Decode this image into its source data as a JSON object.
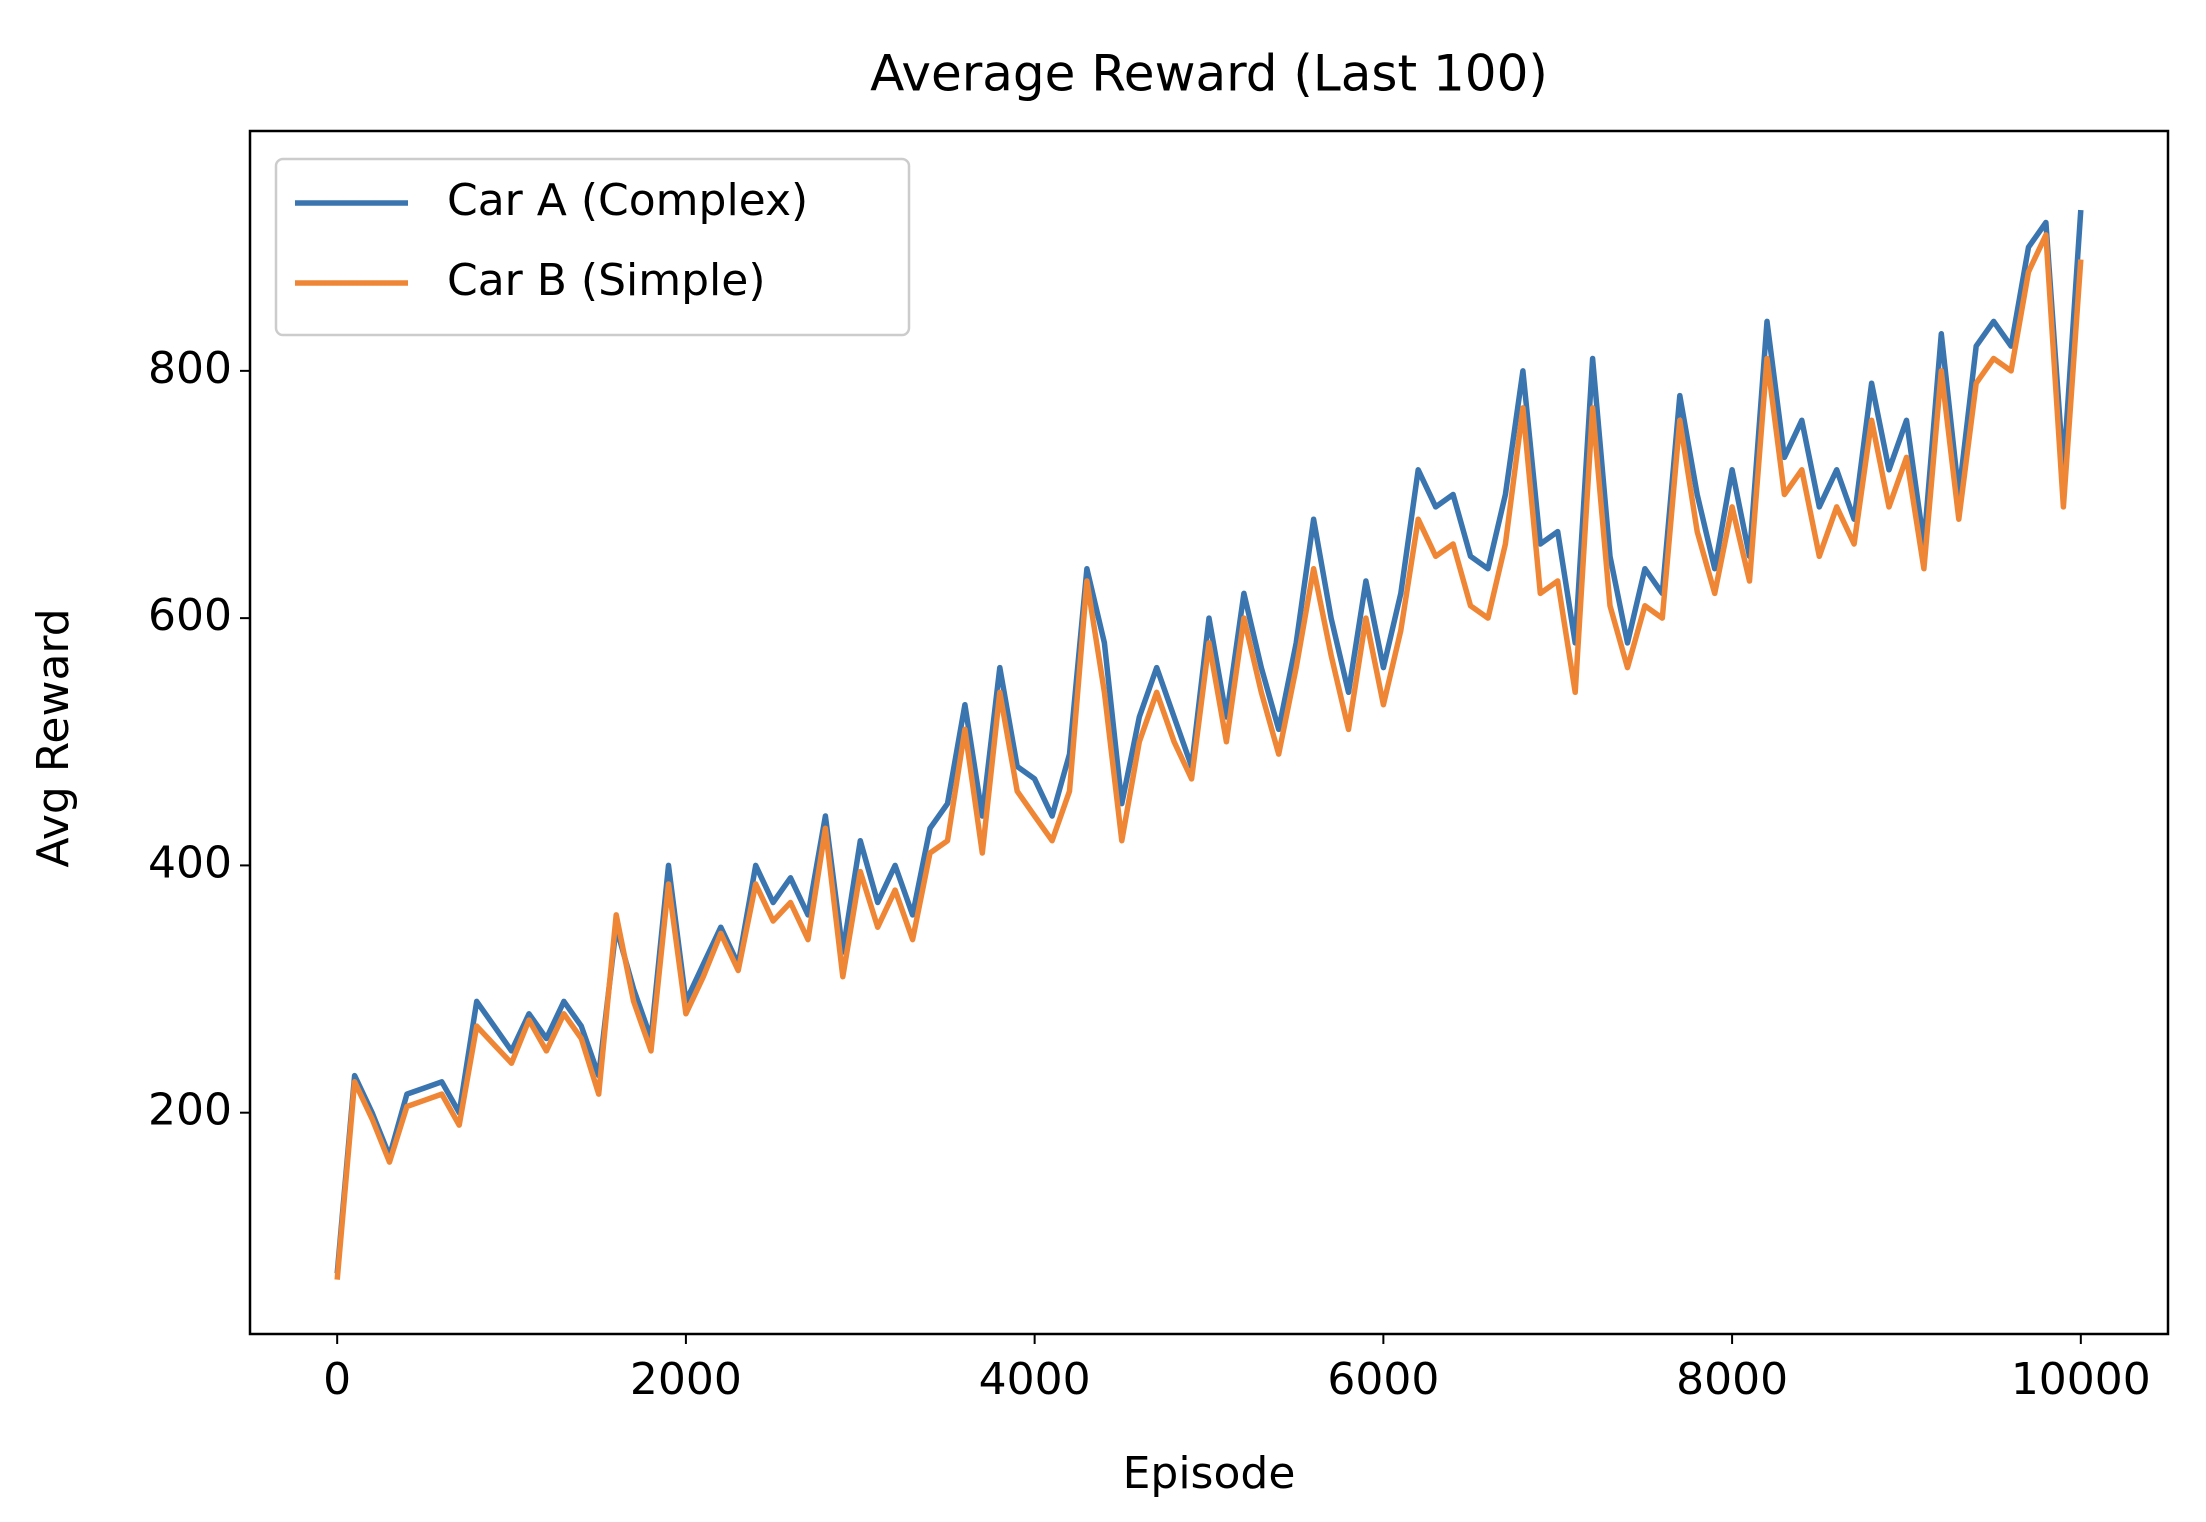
{
  "chart_data": {
    "type": "line",
    "title": "Average Reward (Last 100)",
    "xlabel": "Episode",
    "ylabel": "Avg Reward",
    "x": [
      0,
      100,
      200,
      300,
      400,
      500,
      600,
      700,
      800,
      900,
      1000,
      1100,
      1200,
      1300,
      1400,
      1500,
      1600,
      1700,
      1800,
      1900,
      2000,
      2100,
      2200,
      2300,
      2400,
      2500,
      2600,
      2700,
      2800,
      2900,
      3000,
      3100,
      3200,
      3300,
      3400,
      3500,
      3600,
      3700,
      3800,
      3900,
      4000,
      4100,
      4200,
      4300,
      4400,
      4500,
      4600,
      4700,
      4800,
      4900,
      5000,
      5100,
      5200,
      5300,
      5400,
      5500,
      5600,
      5700,
      5800,
      5900,
      6000,
      6100,
      6200,
      6300,
      6400,
      6500,
      6600,
      6700,
      6800,
      6900,
      7000,
      7100,
      7200,
      7300,
      7400,
      7500,
      7600,
      7700,
      7800,
      7900,
      8000,
      8100,
      8200,
      8300,
      8400,
      8500,
      8600,
      8700,
      8800,
      8900,
      9000,
      9100,
      9200,
      9300,
      9400,
      9500,
      9600,
      9700,
      9800,
      9900,
      10000
    ],
    "series": [
      {
        "name": "Car A (Complex)",
        "color": "#3b75af",
        "values": [
          70,
          230,
          200,
          165,
          215,
          220,
          225,
          200,
          290,
          270,
          250,
          280,
          260,
          290,
          270,
          230,
          350,
          300,
          260,
          400,
          290,
          320,
          350,
          320,
          400,
          370,
          390,
          360,
          440,
          330,
          420,
          370,
          400,
          360,
          430,
          450,
          530,
          440,
          560,
          480,
          470,
          440,
          490,
          640,
          580,
          450,
          520,
          560,
          520,
          480,
          600,
          520,
          620,
          560,
          510,
          580,
          680,
          600,
          540,
          630,
          560,
          620,
          720,
          690,
          700,
          650,
          640,
          700,
          800,
          660,
          670,
          580,
          810,
          650,
          580,
          640,
          620,
          780,
          700,
          640,
          720,
          650,
          840,
          730,
          760,
          690,
          720,
          680,
          790,
          720,
          760,
          660,
          830,
          700,
          820,
          840,
          820,
          900,
          920,
          720,
          930
        ]
      },
      {
        "name": "Car B (Simple)",
        "color": "#ef8636",
        "values": [
          65,
          225,
          195,
          160,
          205,
          210,
          215,
          190,
          270,
          255,
          240,
          275,
          250,
          280,
          260,
          215,
          360,
          290,
          250,
          385,
          280,
          310,
          345,
          315,
          385,
          355,
          370,
          340,
          430,
          310,
          395,
          350,
          380,
          340,
          410,
          420,
          510,
          410,
          540,
          460,
          440,
          420,
          460,
          630,
          540,
          420,
          500,
          540,
          500,
          470,
          580,
          500,
          600,
          540,
          490,
          560,
          640,
          570,
          510,
          600,
          530,
          590,
          680,
          650,
          660,
          610,
          600,
          660,
          770,
          620,
          630,
          540,
          770,
          610,
          560,
          610,
          600,
          760,
          670,
          620,
          690,
          630,
          810,
          700,
          720,
          650,
          690,
          660,
          760,
          690,
          730,
          640,
          800,
          680,
          790,
          810,
          800,
          880,
          910,
          690,
          890
        ]
      }
    ],
    "xlim": [
      -500,
      10500
    ],
    "xticks": [
      0,
      2000,
      4000,
      6000,
      8000,
      10000
    ],
    "ylim": [
      21,
      994
    ],
    "yticks": [
      200,
      400,
      600,
      800
    ],
    "legend": "upper left",
    "grid": false
  }
}
